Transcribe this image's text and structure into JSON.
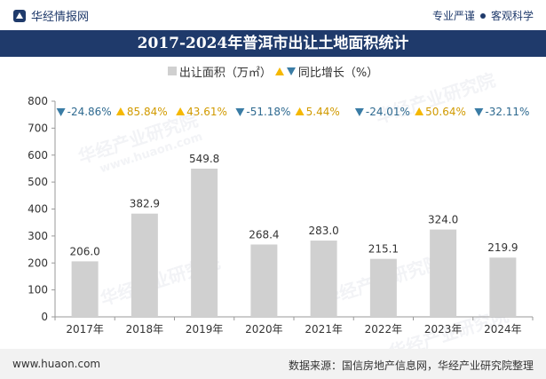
{
  "header": {
    "brand_name": "华经情报网",
    "tagline_left": "专业严谨",
    "tagline_right": "客观科学"
  },
  "colors": {
    "navy": "#1f3a6b",
    "bar": "#d0d0d0",
    "up": "#f5b800",
    "down": "#3a7ca5"
  },
  "legend": {
    "bar_label": "出让面积（万㎡）",
    "growth_label": "同比增长（%）"
  },
  "watermark": {
    "text": "华经产业研究院",
    "url": "www.huaon.com"
  },
  "footer": {
    "website": "www.huaon.com",
    "source": "数据来源：国信房地产信息网，华经产业研究院整理"
  },
  "chart_data": {
    "type": "bar",
    "title": "2017-2024年普洱市出让土地面积统计",
    "categories": [
      "2017年",
      "2018年",
      "2019年",
      "2020年",
      "2021年",
      "2022年",
      "2023年",
      "2024年"
    ],
    "series": [
      {
        "name": "出让面积（万㎡）",
        "values": [
          206.0,
          382.9,
          549.8,
          268.4,
          283.0,
          215.1,
          324.0,
          219.9
        ]
      }
    ],
    "value_labels": [
      "206.0",
      "382.9",
      "549.8",
      "268.4",
      "283.0",
      "215.1",
      "324.0",
      "219.9"
    ],
    "growth": [
      {
        "value": -24.86,
        "label": "-24.86%",
        "direction": "down"
      },
      {
        "value": 85.84,
        "label": "85.84%",
        "direction": "up"
      },
      {
        "value": 43.61,
        "label": "43.61%",
        "direction": "up"
      },
      {
        "value": -51.18,
        "label": "-51.18%",
        "direction": "down"
      },
      {
        "value": 5.44,
        "label": "5.44%",
        "direction": "up"
      },
      {
        "value": -24.01,
        "label": "-24.01%",
        "direction": "down"
      },
      {
        "value": 50.64,
        "label": "50.64%",
        "direction": "up"
      },
      {
        "value": -32.11,
        "label": "-32.11%",
        "direction": "down"
      }
    ],
    "ylim": [
      0,
      800
    ],
    "yticks": [
      0,
      100,
      200,
      300,
      400,
      500,
      600,
      700,
      800
    ],
    "ytick_labels": [
      "0",
      "100",
      "200",
      "300",
      "400",
      "500",
      "600",
      "700",
      "800"
    ],
    "xlabel": "",
    "ylabel": "",
    "grid": false,
    "legend_position": "top-center"
  }
}
